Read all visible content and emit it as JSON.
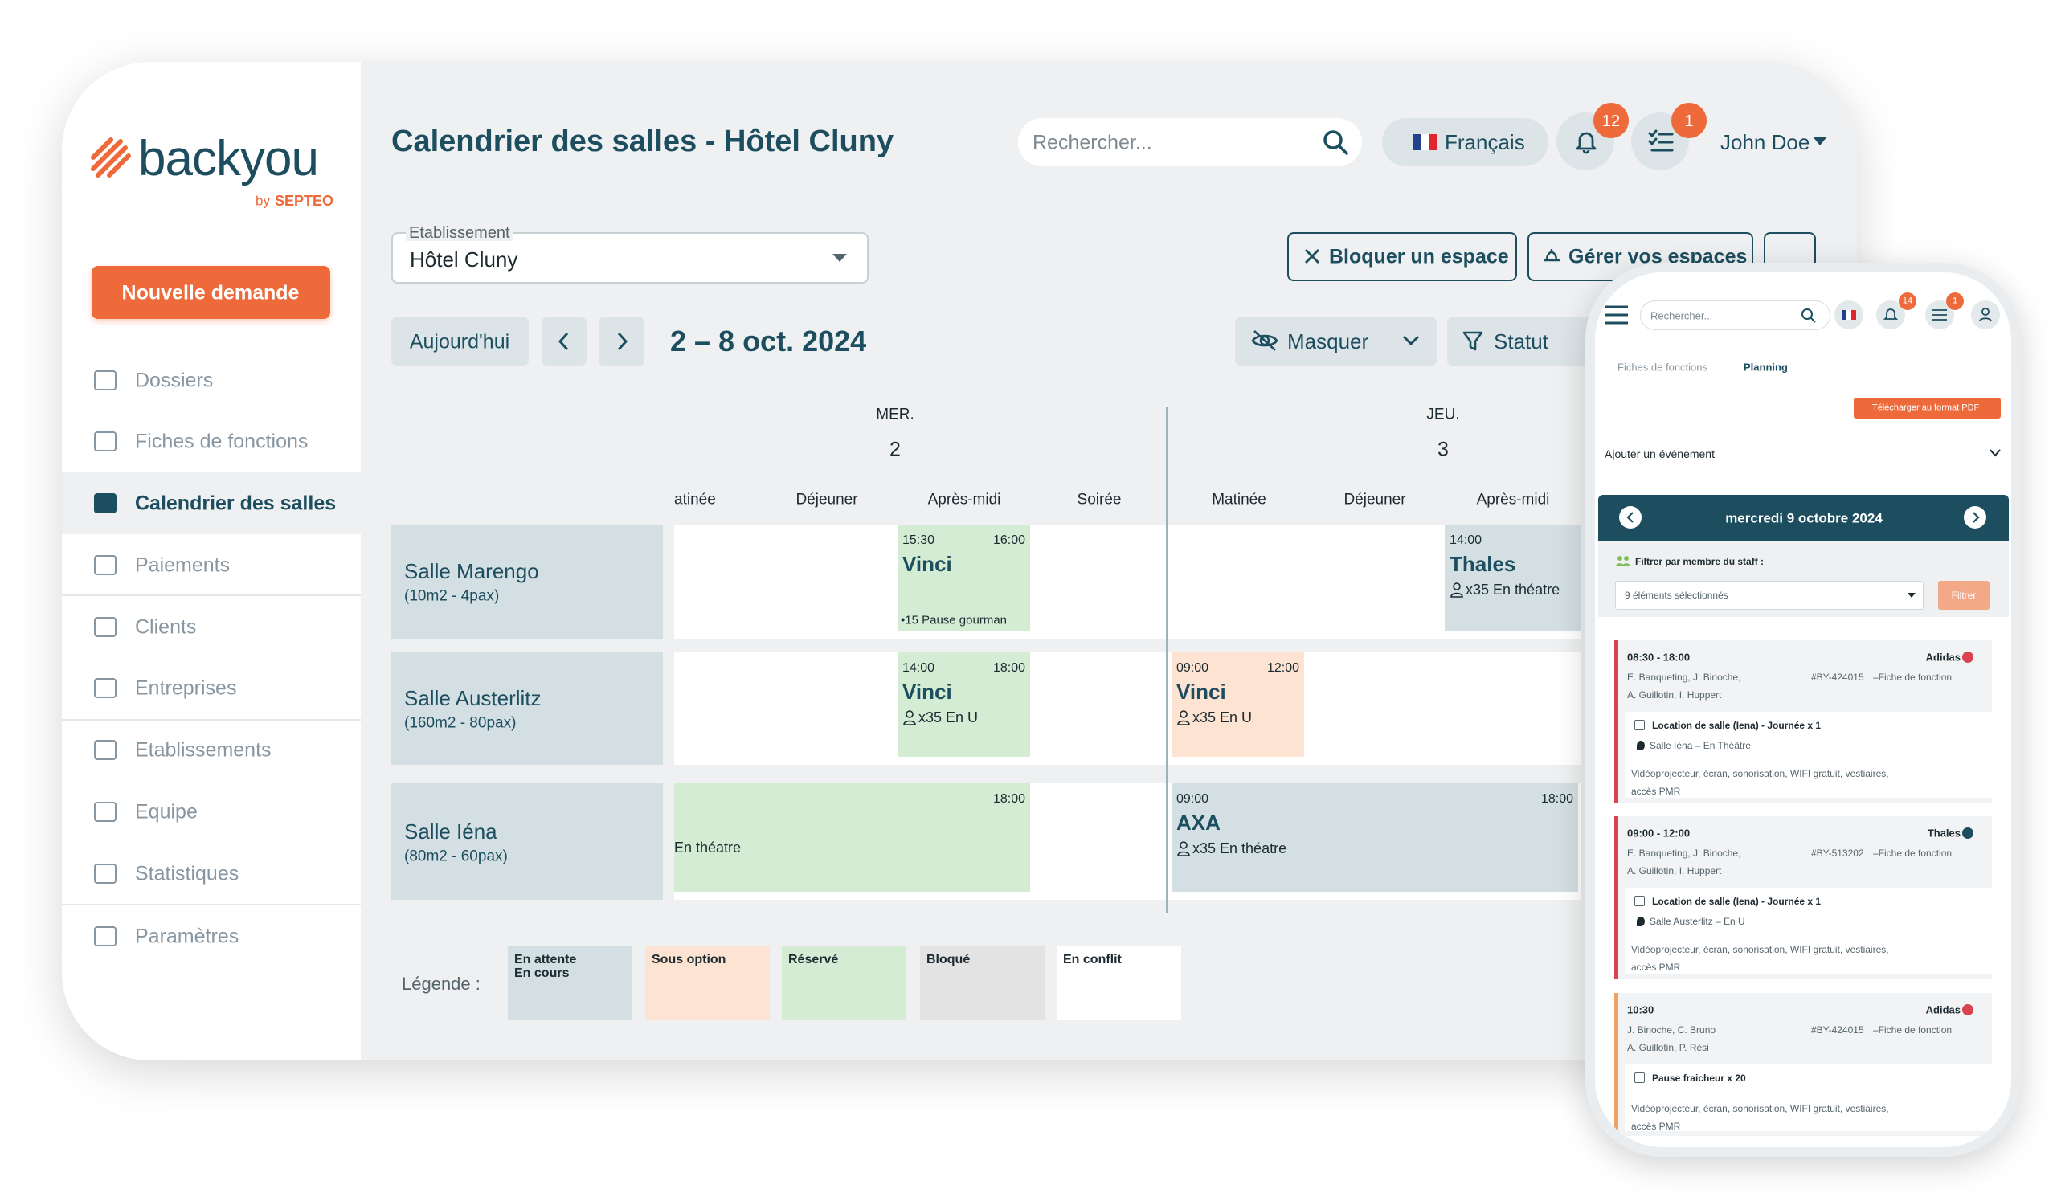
{
  "sidebar": {
    "logo": "backyou",
    "logo_by": "by",
    "logo_brand": "SEPTEO",
    "new_request": "Nouvelle demande",
    "menu": [
      "Dossiers",
      "Fiches de fonctions",
      "Calendrier des salles",
      "Paiements",
      "Clients",
      "Entreprises",
      "Etablissements",
      "Equipe",
      "Statistiques",
      "Paramètres"
    ]
  },
  "header": {
    "title": "Calendrier des salles - Hôtel Cluny",
    "search": "Rechercher...",
    "language": "Français",
    "notifications": "12",
    "tasks": "1",
    "user": "John Doe"
  },
  "toolbar": {
    "establishment_label": "Etablissement",
    "establishment": "Hôtel Cluny",
    "block_space": "Bloquer un espace",
    "manage_spaces": "Gérer vos espaces",
    "today": "Aujourd'hui",
    "date_range": "2 – 8 oct. 2024",
    "hide": "Masquer",
    "status": "Statut"
  },
  "calendar": {
    "days": [
      {
        "weekday": "MER.",
        "day": "2",
        "periods": [
          "Matinée",
          "Déjeuner",
          "Après-midi",
          "Soirée"
        ]
      },
      {
        "weekday": "JEU.",
        "day": "3",
        "periods": [
          "Matinée",
          "Déjeuner",
          "Après-midi"
        ]
      }
    ],
    "rooms": [
      {
        "name": "Salle Marengo",
        "details": "(10m2 - 4pax)"
      },
      {
        "name": "Salle Austerlitz",
        "details": "(160m2 - 80pax)"
      },
      {
        "name": "Salle Iéna",
        "details": "(80m2 - 60pax)"
      }
    ],
    "events": [
      {
        "start": "15:30",
        "end": "16:00",
        "title": "Vinci",
        "detail": "•15 Pause gourman"
      },
      {
        "start": "14:00",
        "title": "Thales",
        "detail": "x35 En théatre"
      },
      {
        "start": "14:00",
        "end": "18:00",
        "title": "Vinci",
        "detail": "x35 En U"
      },
      {
        "start": "09:00",
        "end": "12:00",
        "title": "Vinci",
        "detail": "x35 En U"
      },
      {
        "end": "18:00",
        "detail": "En théatre"
      },
      {
        "start": "09:00",
        "end": "18:00",
        "title": "AXA",
        "detail": "x35 En théatre"
      }
    ]
  },
  "legend": {
    "label": "Légende :",
    "items": [
      [
        "En attente",
        "En cours"
      ],
      [
        "Sous option"
      ],
      [
        "Réservé"
      ],
      [
        "Bloqué"
      ],
      [
        "En conflit"
      ]
    ]
  },
  "mobile": {
    "search": "Rechercher...",
    "notifications": "14",
    "tasks": "1",
    "tabs": [
      "Fiches de fonctions",
      "Planning"
    ],
    "pdf": "Télécharger au format PDF",
    "add_event": "Ajouter un événement",
    "date": "mercredi 9 octobre 2024",
    "filter_label": "Filtrer par membre du staff :",
    "filter_select": "9 éléments sélectionnés",
    "filter_button": "Filtrer",
    "cards": [
      {
        "time": "08:30 - 18:00",
        "client": "Adidas",
        "staff": [
          "E. Banqueting, J. Binoche,",
          "A. Guillotin, I. Huppert"
        ],
        "ref": "#BY-424015",
        "ref_link": "–Fiche de fonction",
        "item": "Location de salle (Iena) - Journée x 1",
        "location": "Salle Iéna – En Théâtre",
        "equipment": [
          "Vidéoprojecteur, écran, sonorisation, WIFI gratuit, vestiaires,",
          "accès PMR"
        ]
      },
      {
        "time": "09:00 - 12:00",
        "client": "Thales",
        "staff": [
          "E. Banqueting, J. Binoche,",
          "A. Guillotin, I. Huppert"
        ],
        "ref": "#BY-513202",
        "ref_link": "–Fiche de fonction",
        "item": "Location de salle (Iena) - Journée x 1",
        "location": "Salle Austerlitz – En U",
        "equipment": [
          "Vidéoprojecteur, écran, sonorisation, WIFI gratuit, vestiaires,",
          "accès PMR"
        ]
      },
      {
        "time": "10:30",
        "client": "Adidas",
        "staff": [
          "J. Binoche, C. Bruno",
          "A. Guillotin, P. Rési"
        ],
        "ref": "#BY-424015",
        "ref_link": "–Fiche de fonction",
        "item": "Pause fraicheur x 20",
        "equipment": [
          "Vidéoprojecteur, écran, sonorisation, WIFI gratuit, vestiaires,",
          "accès PMR"
        ]
      }
    ]
  }
}
